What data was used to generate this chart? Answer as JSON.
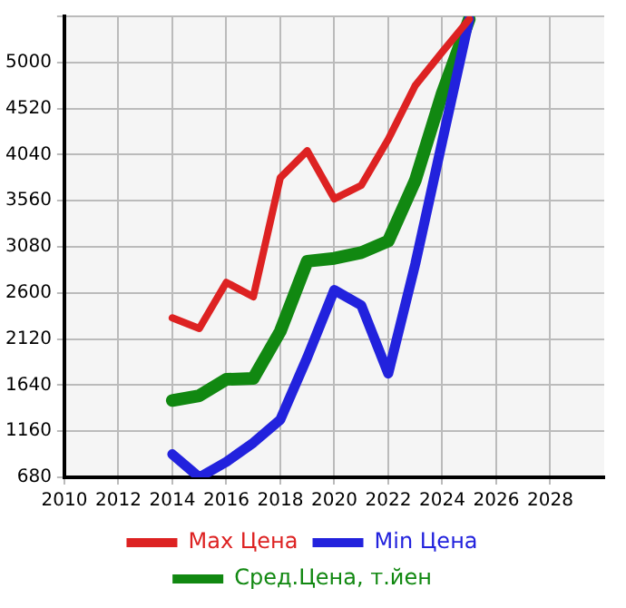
{
  "chart_data": {
    "type": "line",
    "x": [
      2014,
      2015,
      2016,
      2017,
      2018,
      2019,
      2020,
      2021,
      2022,
      2023,
      2024,
      2025
    ],
    "series": [
      {
        "name": "Max Цена",
        "color": "#dd2222",
        "values": [
          2340,
          2230,
          2710,
          2560,
          3800,
          4080,
          3580,
          3720,
          4200,
          4760,
          5110,
          5450
        ]
      },
      {
        "name": "Min Цена",
        "color": "#2222dd",
        "values": [
          920,
          680,
          840,
          1040,
          1280,
          1930,
          2630,
          2470,
          1760,
          2900,
          4180,
          5450
        ]
      },
      {
        "name": "Сред.Цена, т.йен",
        "color": "#118811",
        "values": [
          1480,
          1530,
          1700,
          1710,
          2200,
          2930,
          2960,
          3020,
          3140,
          3770,
          4680,
          5450
        ]
      }
    ],
    "xlim": [
      2010,
      2030
    ],
    "xticks": [
      2010,
      2012,
      2014,
      2016,
      2018,
      2020,
      2022,
      2024,
      2026,
      2028
    ],
    "ylim": [
      680,
      5480
    ],
    "yticks": [
      680,
      1160,
      1640,
      2120,
      2600,
      3080,
      3560,
      4040,
      4520,
      5000,
      {
        "value": 5480,
        "label": null
      }
    ],
    "grid": true,
    "legend": "bottom",
    "marker": "none",
    "line_style": "solid"
  }
}
